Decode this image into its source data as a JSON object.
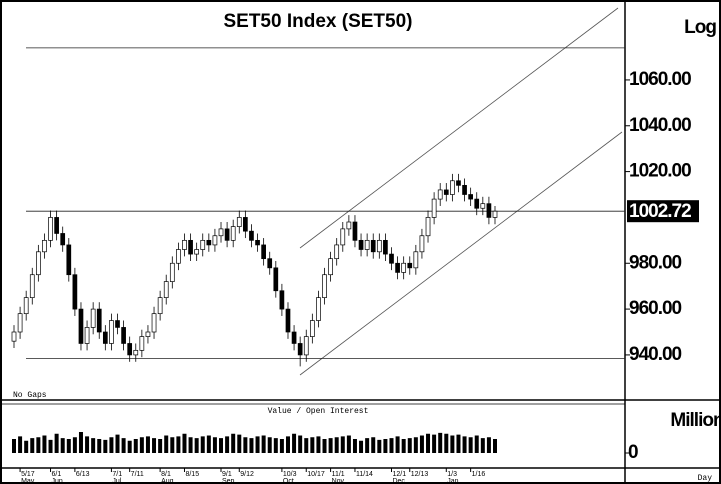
{
  "chart_data": {
    "type": "candlestick",
    "title": "SET50 Index (SET50)",
    "scale_label": "Log",
    "gap_label": "No Gaps",
    "volume_title": "Value / Open Interest",
    "volume_unit": "Million",
    "period": "Day",
    "last_price": 1002.72,
    "ylim": [
      921.2,
      1092.7
    ],
    "yticks": [
      {
        "value": 940,
        "label": "940.00"
      },
      {
        "value": 960,
        "label": "960.00"
      },
      {
        "value": 980,
        "label": "980.00"
      },
      {
        "value": 1020,
        "label": "1020.00"
      },
      {
        "value": 1040,
        "label": "1040.00"
      },
      {
        "value": 1060,
        "label": "1060.00"
      }
    ],
    "hlines": [
      1074,
      1002.72,
      938.5
    ],
    "categories": [
      null,
      "5/17",
      null,
      null,
      null,
      null,
      "6/1",
      null,
      null,
      null,
      "6/13",
      null,
      null,
      null,
      null,
      null,
      "7/1",
      null,
      null,
      "7/11",
      null,
      null,
      null,
      null,
      "8/1",
      null,
      null,
      null,
      "8/15",
      null,
      null,
      null,
      null,
      null,
      "9/1",
      null,
      null,
      "9/12",
      null,
      null,
      null,
      null,
      null,
      null,
      "10/3",
      null,
      null,
      null,
      "10/17",
      null,
      null,
      null,
      "11/1",
      null,
      null,
      null,
      "11/14",
      null,
      null,
      null,
      null,
      null,
      "12/1",
      null,
      null,
      "12/13",
      null,
      null,
      null,
      null,
      null,
      "1/3",
      null,
      null,
      null,
      "1/16",
      null,
      null,
      null,
      null
    ],
    "month_labels": [
      null,
      "May",
      null,
      null,
      null,
      null,
      "Jun",
      null,
      null,
      null,
      null,
      null,
      null,
      null,
      null,
      null,
      "Jul",
      null,
      null,
      null,
      null,
      null,
      null,
      null,
      "Aug",
      null,
      null,
      null,
      null,
      null,
      null,
      null,
      null,
      null,
      "Sep",
      null,
      null,
      null,
      null,
      null,
      null,
      null,
      null,
      null,
      "Oct",
      null,
      null,
      null,
      null,
      null,
      null,
      null,
      "Nov",
      null,
      null,
      null,
      null,
      null,
      null,
      null,
      null,
      null,
      "Dec",
      null,
      null,
      null,
      null,
      null,
      null,
      null,
      null,
      "Jan",
      null,
      null,
      null,
      null,
      null,
      null,
      null,
      null
    ],
    "open": [
      946,
      950,
      958,
      965,
      975,
      985,
      990,
      1000,
      993,
      988,
      975,
      960,
      945,
      952,
      960,
      950,
      945,
      955,
      952,
      945,
      940,
      942,
      948,
      950,
      958,
      965,
      972,
      980,
      986,
      990,
      984,
      986,
      990,
      988,
      992,
      995,
      990,
      996,
      1000,
      994,
      990,
      988,
      982,
      978,
      968,
      960,
      950,
      945,
      940,
      948,
      955,
      965,
      975,
      982,
      988,
      995,
      998,
      990,
      986,
      990,
      985,
      990,
      984,
      980,
      976,
      980,
      978,
      985,
      992,
      1000,
      1008,
      1012,
      1010,
      1016,
      1014,
      1010,
      1008,
      1004,
      1006,
      1000
    ],
    "high": [
      953,
      961,
      968,
      978,
      988,
      993,
      1003,
      1003,
      996,
      991,
      978,
      963,
      955,
      963,
      963,
      953,
      958,
      958,
      955,
      948,
      945,
      951,
      953,
      961,
      968,
      975,
      983,
      989,
      993,
      993,
      989,
      993,
      993,
      995,
      998,
      998,
      999,
      1003,
      1003,
      997,
      993,
      991,
      985,
      981,
      971,
      963,
      953,
      948,
      951,
      958,
      968,
      978,
      985,
      991,
      998,
      1001,
      1001,
      993,
      993,
      993,
      993,
      993,
      987,
      983,
      983,
      983,
      988,
      995,
      1003,
      1011,
      1015,
      1015,
      1019,
      1019,
      1017,
      1013,
      1011,
      1009,
      1009,
      1005
    ],
    "low": [
      943,
      947,
      955,
      962,
      972,
      982,
      987,
      990,
      985,
      972,
      957,
      942,
      942,
      949,
      947,
      942,
      942,
      949,
      942,
      937,
      937,
      939,
      945,
      947,
      955,
      962,
      969,
      977,
      983,
      981,
      981,
      983,
      985,
      985,
      989,
      987,
      987,
      993,
      991,
      987,
      985,
      979,
      975,
      965,
      957,
      947,
      942,
      935,
      937,
      945,
      952,
      962,
      972,
      979,
      985,
      992,
      987,
      983,
      983,
      982,
      982,
      981,
      977,
      973,
      973,
      975,
      975,
      982,
      989,
      997,
      1005,
      1007,
      1007,
      1011,
      1007,
      1005,
      1001,
      1001,
      997,
      997
    ],
    "close": [
      950,
      958,
      965,
      975,
      985,
      990,
      1000,
      993,
      988,
      975,
      960,
      945,
      952,
      960,
      950,
      945,
      955,
      952,
      945,
      940,
      942,
      948,
      950,
      958,
      965,
      972,
      980,
      986,
      990,
      984,
      986,
      990,
      988,
      992,
      995,
      990,
      996,
      1000,
      994,
      990,
      988,
      982,
      978,
      968,
      960,
      950,
      945,
      940,
      948,
      955,
      965,
      975,
      982,
      988,
      995,
      998,
      990,
      986,
      990,
      985,
      990,
      984,
      980,
      976,
      980,
      978,
      985,
      992,
      1000,
      1008,
      1012,
      1010,
      1016,
      1014,
      1010,
      1008,
      1004,
      1006,
      1000,
      1002.72
    ],
    "volume": [
      80,
      95,
      70,
      85,
      90,
      100,
      75,
      110,
      85,
      80,
      90,
      120,
      95,
      85,
      80,
      75,
      90,
      105,
      85,
      70,
      80,
      90,
      95,
      85,
      80,
      100,
      90,
      95,
      110,
      90,
      85,
      95,
      100,
      90,
      85,
      95,
      110,
      105,
      90,
      85,
      95,
      100,
      90,
      85,
      80,
      95,
      110,
      100,
      85,
      90,
      95,
      80,
      85,
      90,
      95,
      100,
      80,
      70,
      85,
      90,
      75,
      80,
      85,
      95,
      80,
      85,
      90,
      100,
      110,
      105,
      115,
      110,
      100,
      105,
      95,
      90,
      100,
      85,
      90,
      80
    ],
    "volume_ylim": [
      0,
      200
    ],
    "volume_yticks": [
      0
    ]
  }
}
